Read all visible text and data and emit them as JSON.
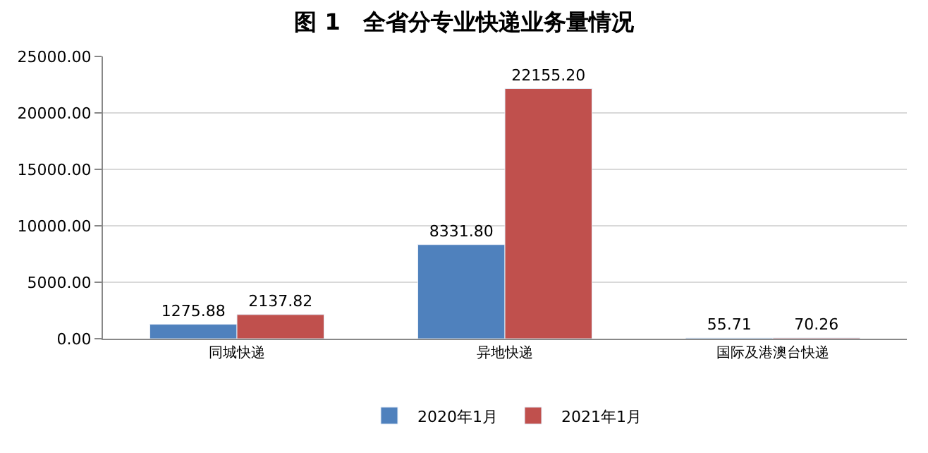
{
  "chart_data": {
    "type": "bar",
    "title": "图 1　全省分专业快递业务量情况",
    "categories": [
      "同城快递",
      "异地快递",
      "国际及港澳台快递"
    ],
    "series": [
      {
        "name": "2020年1月",
        "color": "#4f81bd",
        "values": [
          1275.88,
          8331.8,
          55.71
        ],
        "value_labels": [
          "1275.88",
          "8331.80",
          "55.71"
        ]
      },
      {
        "name": "2021年1月",
        "color": "#c0504d",
        "values": [
          2137.82,
          22155.2,
          70.26
        ],
        "value_labels": [
          "2137.82",
          "22155.20",
          "70.26"
        ]
      }
    ],
    "ylim": [
      0,
      25000
    ],
    "yticks": [
      {
        "value": 0,
        "label": "0.00"
      },
      {
        "value": 5000,
        "label": "5000.00"
      },
      {
        "value": 10000,
        "label": "10000.00"
      },
      {
        "value": 15000,
        "label": "15000.00"
      },
      {
        "value": 20000,
        "label": "20000.00"
      },
      {
        "value": 25000,
        "label": "25000.00"
      }
    ],
    "legend": "bottom",
    "grid": "y"
  }
}
